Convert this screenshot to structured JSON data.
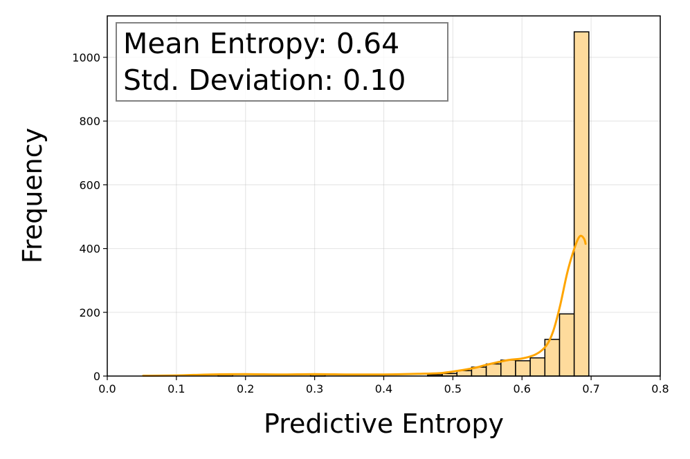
{
  "chart_data": {
    "type": "bar",
    "title": "",
    "xlabel": "Predictive Entropy",
    "ylabel": "Frequency",
    "xlim": [
      0.0,
      0.8
    ],
    "ylim": [
      0,
      1130
    ],
    "xticks": [
      "0.0",
      "0.1",
      "0.2",
      "0.3",
      "0.4",
      "0.5",
      "0.6",
      "0.7",
      "0.8"
    ],
    "yticks": [
      "0",
      "200",
      "400",
      "600",
      "800",
      "1000"
    ],
    "grid": true,
    "bin_width": 0.0212,
    "bins": [
      {
        "start": 0.1603,
        "count": 5
      },
      {
        "start": 0.294,
        "count": 5
      },
      {
        "start": 0.4635,
        "count": 4
      },
      {
        "start": 0.4847,
        "count": 8
      },
      {
        "start": 0.5059,
        "count": 17
      },
      {
        "start": 0.5271,
        "count": 28
      },
      {
        "start": 0.5483,
        "count": 38
      },
      {
        "start": 0.5695,
        "count": 50
      },
      {
        "start": 0.5907,
        "count": 48
      },
      {
        "start": 0.6119,
        "count": 57
      },
      {
        "start": 0.6331,
        "count": 115
      },
      {
        "start": 0.6543,
        "count": 195
      },
      {
        "start": 0.6755,
        "count": 1080
      }
    ],
    "kde": {
      "x": [
        0.052,
        0.1,
        0.15,
        0.2,
        0.25,
        0.3,
        0.35,
        0.4,
        0.45,
        0.48,
        0.5,
        0.53,
        0.55,
        0.58,
        0.6,
        0.62,
        0.635,
        0.645,
        0.655,
        0.665,
        0.672,
        0.68,
        0.685,
        0.69,
        0.692
      ],
      "y": [
        1,
        2,
        5,
        6,
        5,
        6,
        5,
        5,
        7,
        9,
        14,
        25,
        36,
        50,
        55,
        68,
        95,
        140,
        220,
        320,
        375,
        425,
        440,
        430,
        415
      ]
    },
    "bar_color": "#fedb9c",
    "bar_edge_color": "#000000",
    "kde_color": "#ffa500",
    "annotation": {
      "lines": [
        "Mean Entropy: 0.64",
        "Std. Deviation: 0.10"
      ],
      "placement": "top-left"
    }
  }
}
